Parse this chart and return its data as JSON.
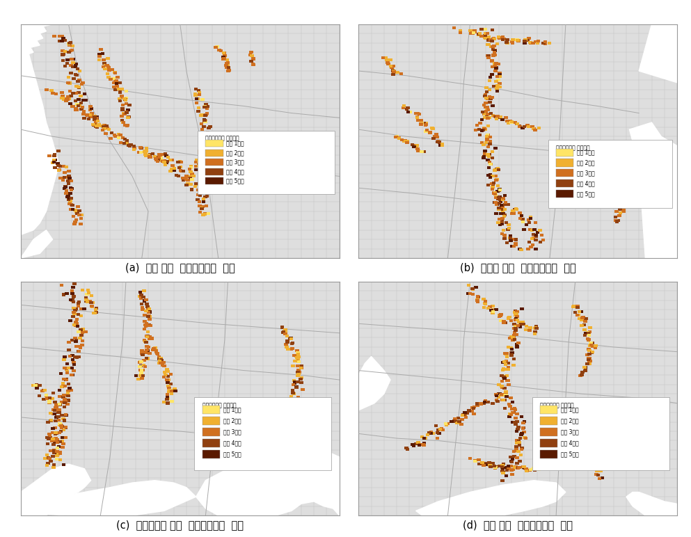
{
  "subtitles": [
    "(a)  한강 권역  외수침수예측  결과",
    "(b)  낙동강 권역  외수침수예측  결과",
    "(c)  영산섬진강 권역  외수침수예측  결과",
    "(d)  금강 권역  외수침수예측  결과"
  ],
  "legend_title": "외수침수예측 위험등급",
  "legend_labels": [
    "위험 1등급",
    "위험 2등급",
    "위험 3등급",
    "위험 4등급",
    "위험 5등급"
  ],
  "legend_colors": [
    "#FFE566",
    "#F0B030",
    "#D07020",
    "#904010",
    "#5A1A00"
  ],
  "map_bg_color": "#DEDEDE",
  "grid_color": "#C8C8C8",
  "land_color": "#CCCCCC",
  "sea_color": "#FFFFFF",
  "boundary_color": "#AAAAAA",
  "subtitle_fontsize": 10.5,
  "legend_fontsize": 5.5,
  "legend_title_fontsize": 5.5,
  "fig_bg": "#FFFFFF"
}
